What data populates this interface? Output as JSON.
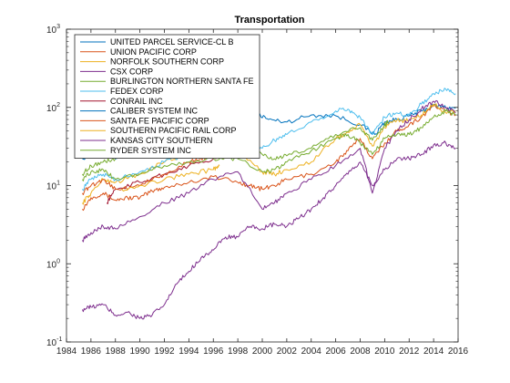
{
  "chart_data": {
    "type": "line",
    "title": "Transportation",
    "xlabel": "",
    "ylabel": "",
    "x_ticks": [
      "1984",
      "1986",
      "1988",
      "1990",
      "1992",
      "1994",
      "1996",
      "1998",
      "2000",
      "2002",
      "2004",
      "2006",
      "2008",
      "2010",
      "2012",
      "2014",
      "2016"
    ],
    "y_ticks": [
      {
        "base": "10",
        "exp": "-1"
      },
      {
        "base": "10",
        "exp": "0"
      },
      {
        "base": "10",
        "exp": "1"
      },
      {
        "base": "10",
        "exp": "2"
      },
      {
        "base": "10",
        "exp": "3"
      }
    ],
    "xlim": [
      1984,
      2016
    ],
    "ylim": [
      0.1,
      1000
    ],
    "yscale": "log",
    "grid": false,
    "legend_position": "top-left",
    "series": [
      {
        "name": "UNITED PARCEL SERVICE-CL B",
        "color": "#0072BD",
        "points": [
          [
            1985.3,
            22
          ],
          [
            1987,
            35
          ],
          [
            1988,
            40
          ],
          [
            1990,
            45
          ],
          [
            1992,
            55
          ],
          [
            1994,
            60
          ],
          [
            1996,
            48
          ],
          [
            1998,
            55
          ],
          [
            1999.5,
            85
          ],
          [
            2000.5,
            70
          ],
          [
            2002,
            65
          ],
          [
            2004,
            80
          ],
          [
            2006,
            78
          ],
          [
            2008,
            60
          ],
          [
            2009.2,
            45
          ],
          [
            2010,
            65
          ],
          [
            2011,
            70
          ],
          [
            2012,
            78
          ],
          [
            2013,
            90
          ],
          [
            2014,
            105
          ],
          [
            2015,
            100
          ],
          [
            2015.8,
            97
          ]
        ]
      },
      {
        "name": "UNION PACIFIC CORP",
        "color": "#D95319",
        "points": [
          [
            1985.3,
            5
          ],
          [
            1986,
            7
          ],
          [
            1987,
            8
          ],
          [
            1988,
            6.5
          ],
          [
            1989,
            7
          ],
          [
            1990,
            7
          ],
          [
            1991,
            8.5
          ],
          [
            1992,
            9.5
          ],
          [
            1994,
            11
          ],
          [
            1996,
            13
          ],
          [
            1998,
            11
          ],
          [
            1999,
            10
          ],
          [
            2000,
            9
          ],
          [
            2001,
            10
          ],
          [
            2002,
            12
          ],
          [
            2004,
            14
          ],
          [
            2006,
            20
          ],
          [
            2007,
            28
          ],
          [
            2008,
            40
          ],
          [
            2009,
            22
          ],
          [
            2010,
            35
          ],
          [
            2011,
            50
          ],
          [
            2012,
            60
          ],
          [
            2013,
            75
          ],
          [
            2014,
            105
          ],
          [
            2015,
            90
          ],
          [
            2015.8,
            80
          ]
        ]
      },
      {
        "name": "NORFOLK SOUTHERN CORP",
        "color": "#EDB120",
        "points": [
          [
            1985.3,
            6
          ],
          [
            1986,
            8
          ],
          [
            1987,
            12
          ],
          [
            1988,
            11
          ],
          [
            1990,
            14
          ],
          [
            1992,
            20
          ],
          [
            1994,
            25
          ],
          [
            1996,
            30
          ],
          [
            1998,
            28
          ],
          [
            2000,
            15
          ],
          [
            2001,
            14
          ],
          [
            2002,
            16
          ],
          [
            2004,
            20
          ],
          [
            2006,
            40
          ],
          [
            2007,
            48
          ],
          [
            2008,
            60
          ],
          [
            2009,
            32
          ],
          [
            2010,
            55
          ],
          [
            2011,
            68
          ],
          [
            2012,
            68
          ],
          [
            2013,
            80
          ],
          [
            2014,
            110
          ],
          [
            2015,
            85
          ],
          [
            2015.8,
            90
          ]
        ]
      },
      {
        "name": "CSX CORP",
        "color": "#7E2F8E",
        "points": [
          [
            1985.3,
            0.26
          ],
          [
            1986,
            0.28
          ],
          [
            1987,
            0.3
          ],
          [
            1988,
            0.22
          ],
          [
            1989,
            0.24
          ],
          [
            1990,
            0.2
          ],
          [
            1991,
            0.22
          ],
          [
            1992,
            0.3
          ],
          [
            1993,
            0.55
          ],
          [
            1994,
            0.8
          ],
          [
            1995,
            1.2
          ],
          [
            1996,
            1.5
          ],
          [
            1997,
            2.2
          ],
          [
            1998,
            2.2
          ],
          [
            1999,
            3
          ],
          [
            2000,
            2.8
          ],
          [
            2001,
            3.2
          ],
          [
            2002,
            3
          ],
          [
            2003,
            3.8
          ],
          [
            2004,
            5
          ],
          [
            2005,
            7
          ],
          [
            2006,
            10
          ],
          [
            2007,
            14
          ],
          [
            2008,
            20
          ],
          [
            2009,
            10
          ],
          [
            2010,
            16
          ],
          [
            2011,
            22
          ],
          [
            2012,
            22
          ],
          [
            2013,
            25
          ],
          [
            2014,
            33
          ],
          [
            2015,
            35
          ],
          [
            2015.8,
            30
          ]
        ]
      },
      {
        "name": "BURLINGTON NORTHERN SANTA FE",
        "color": "#77AC30",
        "points": [
          [
            1985.3,
            14
          ],
          [
            1986,
            18
          ],
          [
            1987,
            20
          ],
          [
            1988,
            22
          ],
          [
            1990,
            28
          ],
          [
            1992,
            30
          ],
          [
            1994,
            35
          ],
          [
            1996,
            38
          ],
          [
            1998,
            40
          ],
          [
            2000,
            25
          ],
          [
            2001,
            22
          ],
          [
            2002,
            24
          ],
          [
            2004,
            30
          ],
          [
            2006,
            45
          ],
          [
            2008,
            55
          ],
          [
            2009,
            38
          ],
          [
            2010,
            60
          ],
          [
            2010.3,
            65
          ]
        ]
      },
      {
        "name": "FEDEX CORP",
        "color": "#4DBEEE",
        "points": [
          [
            1985.3,
            9
          ],
          [
            1986,
            12
          ],
          [
            1987,
            14
          ],
          [
            1988,
            12
          ],
          [
            1990,
            15
          ],
          [
            1992,
            20
          ],
          [
            1994,
            25
          ],
          [
            1996,
            28
          ],
          [
            1998,
            35
          ],
          [
            1999,
            40
          ],
          [
            2000,
            30
          ],
          [
            2001,
            38
          ],
          [
            2002,
            45
          ],
          [
            2004,
            65
          ],
          [
            2006,
            90
          ],
          [
            2007,
            95
          ],
          [
            2008,
            75
          ],
          [
            2009,
            45
          ],
          [
            2010,
            75
          ],
          [
            2011,
            85
          ],
          [
            2012,
            80
          ],
          [
            2013,
            110
          ],
          [
            2014,
            150
          ],
          [
            2015,
            170
          ],
          [
            2015.8,
            150
          ]
        ]
      },
      {
        "name": "CONRAIL INC",
        "color": "#A2142F",
        "points": [
          [
            1987.3,
            6
          ],
          [
            1988,
            9
          ],
          [
            1990,
            11
          ],
          [
            1992,
            14
          ],
          [
            1994,
            18
          ],
          [
            1996,
            22
          ],
          [
            1997,
            30
          ],
          [
            1997.5,
            38
          ]
        ]
      },
      {
        "name": "CALIBER SYSTEM INC",
        "color": "#0072BD",
        "points": [
          [
            1985.3,
            24
          ],
          [
            1987,
            30
          ],
          [
            1988,
            22
          ],
          [
            1990,
            28
          ],
          [
            1992,
            40
          ],
          [
            1994,
            60
          ],
          [
            1995,
            50
          ],
          [
            1996,
            30
          ],
          [
            1997,
            40
          ],
          [
            1997.5,
            48
          ]
        ]
      },
      {
        "name": "SANTA FE PACIFIC CORP",
        "color": "#D95319",
        "points": [
          [
            1985.3,
            8
          ],
          [
            1986,
            10
          ],
          [
            1987,
            12
          ],
          [
            1988,
            9
          ],
          [
            1990,
            10
          ],
          [
            1992,
            14
          ],
          [
            1994,
            20
          ],
          [
            1995,
            22
          ],
          [
            1995.5,
            24
          ]
        ]
      },
      {
        "name": "SOUTHERN PACIFIC RAIL CORP",
        "color": "#EDB120",
        "points": [
          [
            1988.5,
            9
          ],
          [
            1990,
            10
          ],
          [
            1992,
            12
          ],
          [
            1994,
            14
          ],
          [
            1996,
            16
          ],
          [
            1996.5,
            18
          ]
        ]
      },
      {
        "name": "KANSAS CITY SOUTHERN",
        "color": "#7E2F8E",
        "points": [
          [
            1985.3,
            2
          ],
          [
            1986,
            2.5
          ],
          [
            1987,
            3
          ],
          [
            1988,
            2.8
          ],
          [
            1990,
            4
          ],
          [
            1992,
            6
          ],
          [
            1994,
            8
          ],
          [
            1996,
            12
          ],
          [
            1998,
            15
          ],
          [
            2000,
            5
          ],
          [
            2001,
            6
          ],
          [
            2002,
            8
          ],
          [
            2004,
            12
          ],
          [
            2006,
            18
          ],
          [
            2008,
            30
          ],
          [
            2009,
            8
          ],
          [
            2010,
            30
          ],
          [
            2011,
            50
          ],
          [
            2012,
            70
          ],
          [
            2013,
            95
          ],
          [
            2014,
            120
          ],
          [
            2015,
            100
          ],
          [
            2015.8,
            85
          ]
        ]
      },
      {
        "name": "RYDER SYSTEM INC",
        "color": "#77AC30",
        "points": [
          [
            1985.3,
            12
          ],
          [
            1986,
            15
          ],
          [
            1987,
            16
          ],
          [
            1988,
            12
          ],
          [
            1990,
            14
          ],
          [
            1992,
            18
          ],
          [
            1994,
            20
          ],
          [
            1996,
            22
          ],
          [
            1998,
            22
          ],
          [
            2000,
            15
          ],
          [
            2001,
            16
          ],
          [
            2002,
            20
          ],
          [
            2004,
            28
          ],
          [
            2006,
            40
          ],
          [
            2007,
            45
          ],
          [
            2008,
            35
          ],
          [
            2009,
            25
          ],
          [
            2010,
            40
          ],
          [
            2011,
            45
          ],
          [
            2012,
            45
          ],
          [
            2013,
            55
          ],
          [
            2014,
            75
          ],
          [
            2015,
            90
          ],
          [
            2015.8,
            80
          ]
        ]
      }
    ]
  }
}
